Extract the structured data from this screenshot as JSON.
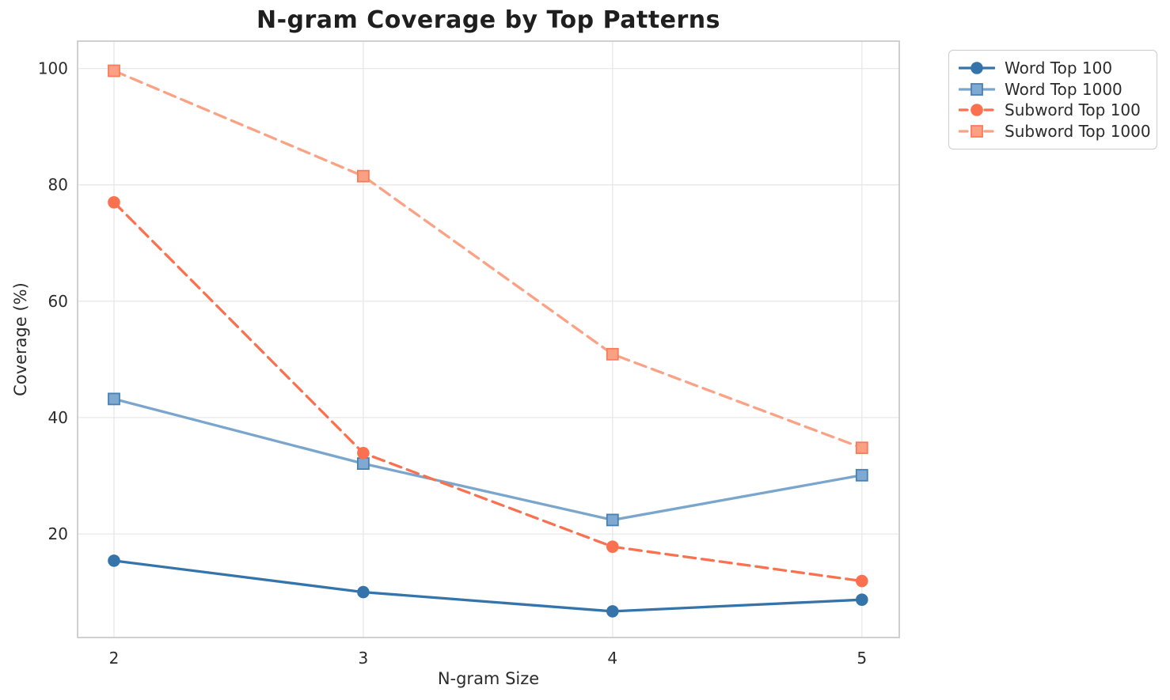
{
  "chart_data": {
    "type": "line",
    "title": "N-gram Coverage by Top Patterns",
    "xlabel": "N-gram Size",
    "ylabel": "Coverage (%)",
    "x": [
      2,
      3,
      4,
      5
    ],
    "xticks": [
      2,
      3,
      4,
      5
    ],
    "yticks": [
      20,
      40,
      60,
      80,
      100
    ],
    "xlim": [
      1.854,
      5.15
    ],
    "ylim": [
      2.2,
      104.7
    ],
    "grid": true,
    "legend_position": "outside-right-top",
    "series": [
      {
        "name": "Word Top 100",
        "values": [
          15.4,
          10.0,
          6.7,
          8.7
        ],
        "line_color": "#3474AB",
        "line_style": "solid",
        "marker": "circle",
        "marker_fill": "#3474AB",
        "marker_edge": "#3474AB"
      },
      {
        "name": "Word Top 1000",
        "values": [
          43.2,
          32.1,
          22.4,
          30.1
        ],
        "line_color": "#7AA6CE",
        "line_style": "solid",
        "marker": "square",
        "marker_fill": "#7FA9D0",
        "marker_edge": "#4881B4"
      },
      {
        "name": "Subword Top 100",
        "values": [
          77.0,
          33.9,
          17.8,
          11.9
        ],
        "line_color": "#FA7150",
        "line_style": "dashed",
        "marker": "circle",
        "marker_fill": "#FA7150",
        "marker_edge": "#FA7150"
      },
      {
        "name": "Subword Top 1000",
        "values": [
          99.6,
          81.5,
          50.9,
          34.8
        ],
        "line_color": "#FBA285",
        "line_style": "dashed",
        "marker": "square",
        "marker_fill": "#FBA082",
        "marker_edge": "#F97C5A"
      }
    ],
    "colors": {
      "grid": "#E8E8E8",
      "spine": "#CBCBCB",
      "text": "#2B2B2B",
      "title": "#1F1F1F",
      "legend_border": "#CCCCCC",
      "background": "#FFFFFF"
    }
  }
}
